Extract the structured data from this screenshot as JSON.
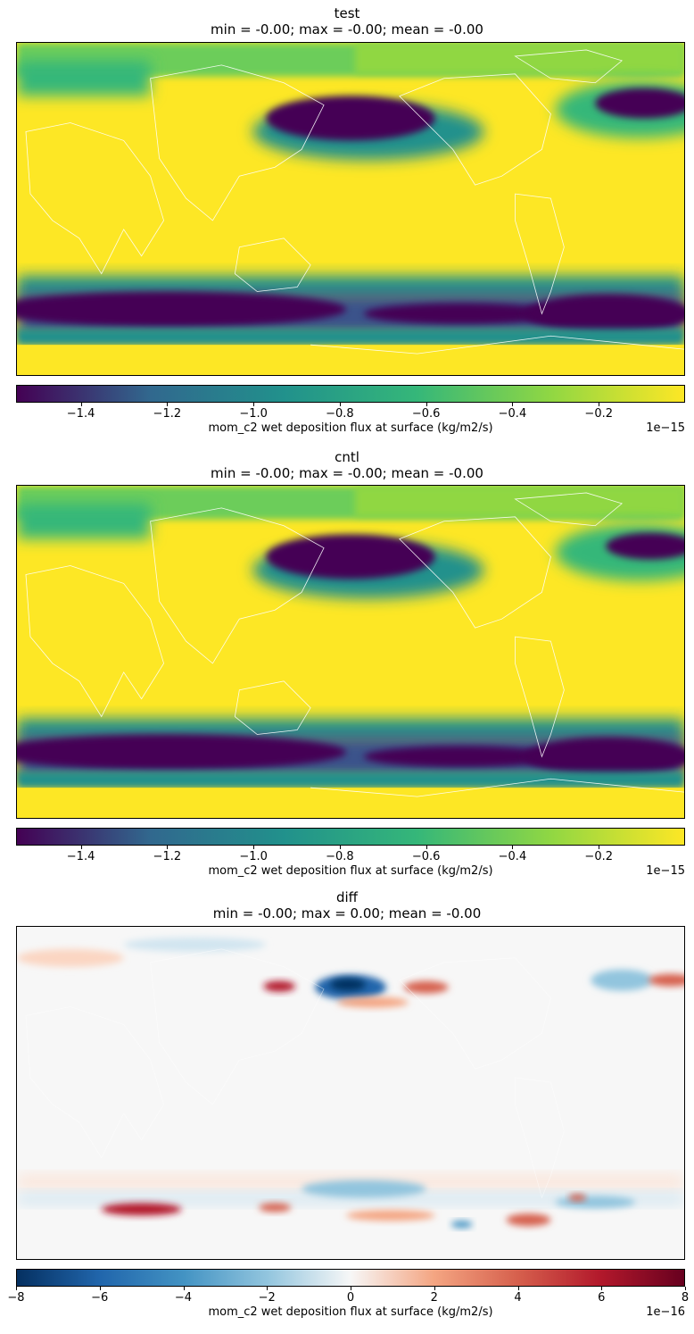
{
  "chart_data": [
    {
      "type": "heatmap",
      "title": "test",
      "subtitle": "min = -0.00; max = -0.00; mean = -0.00",
      "colormap": "viridis",
      "colorbar": {
        "label": "mom_c2 wet deposition flux at surface (kg/m2/s)",
        "range": [
          -1.55,
          0.0
        ],
        "ticks": [
          -1.4,
          -1.2,
          -1.0,
          -0.8,
          -0.6,
          -0.4,
          -0.2
        ],
        "tick_labels": [
          "−1.4",
          "−1.2",
          "−1.0",
          "−0.8",
          "−0.6",
          "−0.4",
          "−0.2"
        ],
        "exponent_label": "1e−15"
      },
      "colors": [
        "#440154",
        "#31688e",
        "#21918c",
        "#35b779",
        "#90d743",
        "#fde725"
      ]
    },
    {
      "type": "heatmap",
      "title": "cntl",
      "subtitle": "min = -0.00; max = -0.00; mean = -0.00",
      "colormap": "viridis",
      "colorbar": {
        "label": "mom_c2 wet deposition flux at surface (kg/m2/s)",
        "range": [
          -1.55,
          0.0
        ],
        "ticks": [
          -1.4,
          -1.2,
          -1.0,
          -0.8,
          -0.6,
          -0.4,
          -0.2
        ],
        "tick_labels": [
          "−1.4",
          "−1.2",
          "−1.0",
          "−0.8",
          "−0.6",
          "−0.4",
          "−0.2"
        ],
        "exponent_label": "1e−15"
      },
      "colors": [
        "#440154",
        "#31688e",
        "#21918c",
        "#35b779",
        "#90d743",
        "#fde725"
      ]
    },
    {
      "type": "heatmap",
      "title": "diff",
      "subtitle": "min = -0.00; max = 0.00; mean = -0.00",
      "colormap": "RdBu_r",
      "colorbar": {
        "label": "mom_c2 wet deposition flux at surface (kg/m2/s)",
        "range": [
          -8.0,
          8.0
        ],
        "ticks": [
          -8,
          -6,
          -4,
          -2,
          0,
          2,
          4,
          6,
          8
        ],
        "tick_labels": [
          "−8",
          "−6",
          "−4",
          "−2",
          "0",
          "2",
          "4",
          "6",
          "8"
        ],
        "exponent_label": "1e−16"
      },
      "colors": [
        "#053061",
        "#2166ac",
        "#4393c3",
        "#92c5de",
        "#f7f7f7",
        "#f4a582",
        "#d6604d",
        "#b2182b",
        "#67001f"
      ]
    }
  ]
}
